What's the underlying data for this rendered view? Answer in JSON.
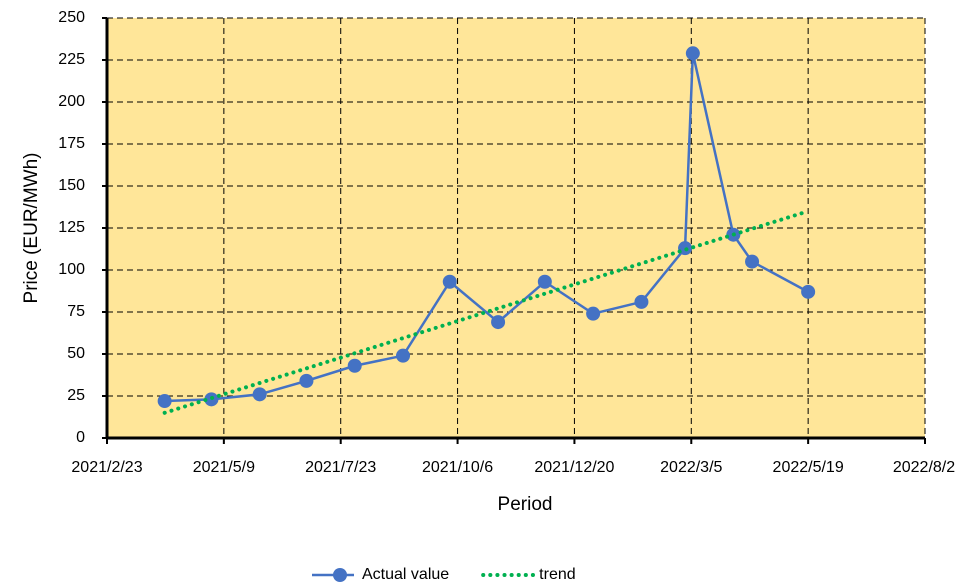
{
  "chart_data": {
    "type": "line",
    "x_label": "Period",
    "y_label": "Price (EUR/MWh)",
    "x": [
      "2021/4/1",
      "2021/5/1",
      "2021/6/1",
      "2021/7/1",
      "2021/8/1",
      "2021/9/1",
      "2021/10/1",
      "2021/11/1",
      "2021/12/1",
      "2022/1/1",
      "2022/2/1",
      "2022/3/1",
      "2022/3/6",
      "2022/4/1",
      "2022/4/13",
      "2022/5/19"
    ],
    "series": [
      {
        "name": "Actual value",
        "color": "#4472c4",
        "values": [
          22,
          23,
          26,
          34,
          43,
          49,
          93,
          69,
          93,
          74,
          81,
          113,
          229,
          121,
          105,
          87
        ]
      },
      {
        "name": "trend",
        "color": "#00b050",
        "style": "dotted",
        "x": [
          "2021/4/1",
          "2022/5/19"
        ],
        "values": [
          15,
          135
        ]
      }
    ],
    "xlim": [
      "2021/2/23",
      "2022/8/2"
    ],
    "xticks": [
      "2021/2/23",
      "2021/5/9",
      "2021/7/23",
      "2021/10/6",
      "2021/12/20",
      "2022/3/5",
      "2022/5/19",
      "2022/8/2"
    ],
    "ylim": [
      0,
      250
    ],
    "yticks": [
      0,
      25,
      50,
      75,
      100,
      125,
      150,
      175,
      200,
      225,
      250
    ],
    "grid": true,
    "plot_background": "#ffe699",
    "legend": "bottom"
  }
}
